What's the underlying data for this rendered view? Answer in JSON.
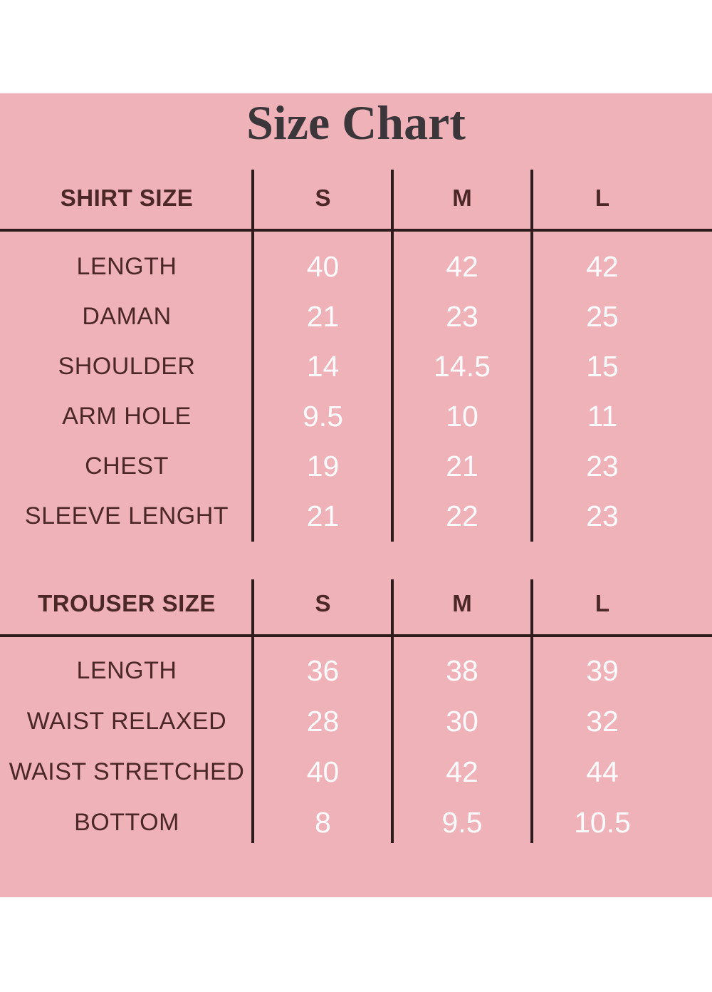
{
  "title": "Size Chart",
  "colors": {
    "page_background": "#ffffff",
    "panel_pink": "#f0b2b9",
    "label_brown": "#4b2827",
    "title_charcoal": "#3a363a",
    "line_dark": "#2e1b1b",
    "value_white": "#fdfbfb"
  },
  "shirt": {
    "header": "SHIRT SIZE",
    "columns": [
      "S",
      "M",
      "L"
    ],
    "rows": [
      {
        "label": "LENGTH",
        "values": [
          "40",
          "42",
          "42"
        ]
      },
      {
        "label": "DAMAN",
        "values": [
          "21",
          "23",
          "25"
        ]
      },
      {
        "label": "SHOULDER",
        "values": [
          "14",
          "14.5",
          "15"
        ]
      },
      {
        "label": "ARM HOLE",
        "values": [
          "9.5",
          "10",
          "11"
        ]
      },
      {
        "label": "CHEST",
        "values": [
          "19",
          "21",
          "23"
        ]
      },
      {
        "label": "SLEEVE LENGHT",
        "values": [
          "21",
          "22",
          "23"
        ]
      }
    ]
  },
  "trouser": {
    "header": "TROUSER SIZE",
    "columns": [
      "S",
      "M",
      "L"
    ],
    "rows": [
      {
        "label": "LENGTH",
        "values": [
          "36",
          "38",
          "39"
        ]
      },
      {
        "label": "WAIST RELAXED",
        "values": [
          "28",
          "30",
          "32"
        ]
      },
      {
        "label": "WAIST STRETCHED",
        "values": [
          "40",
          "42",
          "44"
        ]
      },
      {
        "label": "BOTTOM",
        "values": [
          "8",
          "9.5",
          "10.5"
        ]
      }
    ]
  },
  "chart_data": [
    {
      "type": "table",
      "title": "Size Chart",
      "name": "SHIRT SIZE",
      "columns": [
        "S",
        "M",
        "L"
      ],
      "rows": [
        [
          "LENGTH",
          40,
          42,
          42
        ],
        [
          "DAMAN",
          21,
          23,
          25
        ],
        [
          "SHOULDER",
          14,
          14.5,
          15
        ],
        [
          "ARM HOLE",
          9.5,
          10,
          11
        ],
        [
          "CHEST",
          19,
          21,
          23
        ],
        [
          "SLEEVE LENGHT",
          21,
          22,
          23
        ]
      ]
    },
    {
      "type": "table",
      "title": "Size Chart",
      "name": "TROUSER SIZE",
      "columns": [
        "S",
        "M",
        "L"
      ],
      "rows": [
        [
          "LENGTH",
          36,
          38,
          39
        ],
        [
          "WAIST RELAXED",
          28,
          30,
          32
        ],
        [
          "WAIST STRETCHED",
          40,
          42,
          44
        ],
        [
          "BOTTOM",
          8,
          9.5,
          10.5
        ]
      ]
    }
  ]
}
